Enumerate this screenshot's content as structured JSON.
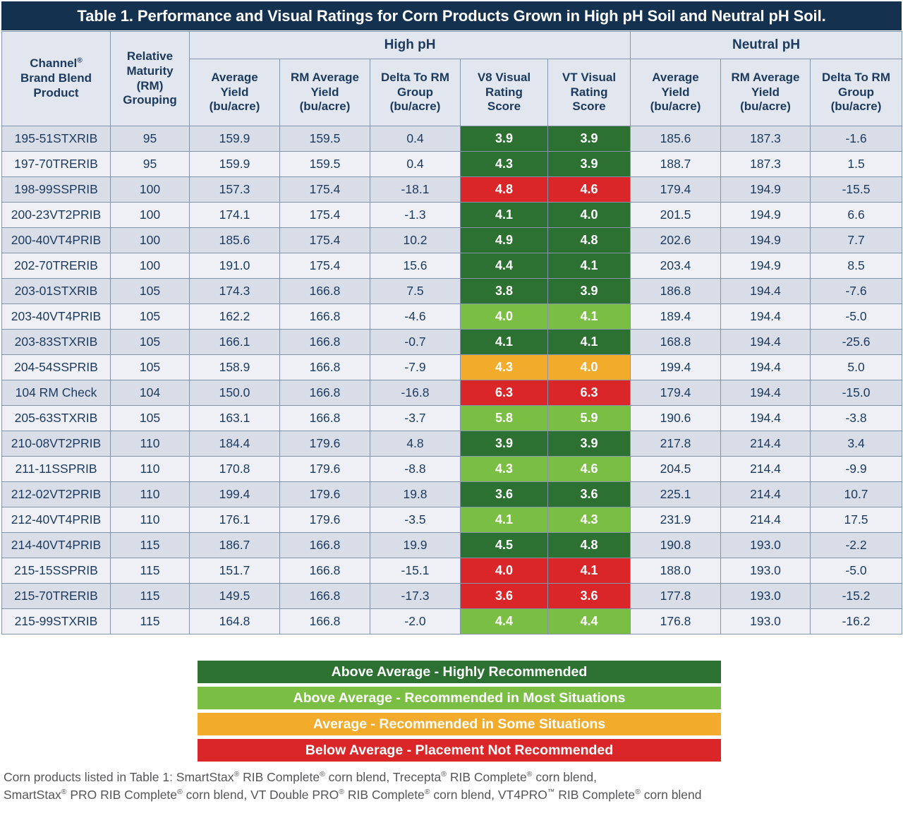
{
  "title": "Table 1. Performance and Visual Ratings for Corn Products Grown in High pH Soil and Neutral pH Soil.",
  "header": {
    "product": "Channel®\nBrand Blend\nProduct",
    "rm": "Relative\nMaturity\n(RM)\nGrouping",
    "high_ph": "High pH",
    "neutral_ph": "Neutral pH",
    "avg_yield": "Average\nYield\n(bu/acre)",
    "rm_avg_yield": "RM Average\nYield\n(bu/acre)",
    "delta": "Delta To RM\nGroup\n(bu/acre)",
    "v8": "V8 Visual\nRating\nScore",
    "vt": "VT Visual\nRating\nScore"
  },
  "colors": {
    "title_bar": "#14324f",
    "header_bg": "#e2e6ee",
    "row_dark": "#d9dde8",
    "row_light": "#eef0f6",
    "text_navy": "#1b3a5e",
    "grid_border": "#8494ab",
    "highly": "#2c7132",
    "most": "#7abf44",
    "some": "#f2ab2a",
    "not": "#da2629"
  },
  "legend": [
    {
      "level": "highly",
      "label": "Above Average - Highly Recommended"
    },
    {
      "level": "most",
      "label": "Above Average - Recommended in Most Situations"
    },
    {
      "level": "some",
      "label": "Average - Recommended in Some Situations"
    },
    {
      "level": "not",
      "label": "Below Average - Placement Not Recommended"
    }
  ],
  "footnote": {
    "line1": "Corn products listed in Table 1: SmartStax® RIB Complete® corn blend, Trecepta® RIB Complete® corn blend,",
    "line2": "SmartStax® PRO RIB Complete® corn blend, VT Double PRO® RIB Complete® corn blend, VT4PRO™ RIB Complete® corn blend"
  },
  "chart_data": {
    "type": "table",
    "title": "Table 1. Performance and Visual Ratings for Corn Products Grown in High pH Soil and Neutral pH Soil.",
    "column_groups": [
      "",
      "",
      "High pH",
      "High pH",
      "High pH",
      "High pH",
      "High pH",
      "Neutral pH",
      "Neutral pH",
      "Neutral pH"
    ],
    "columns": [
      "Channel Brand Blend Product",
      "Relative Maturity (RM) Grouping",
      "Average Yield (bu/acre)",
      "RM Average Yield (bu/acre)",
      "Delta To RM Group (bu/acre)",
      "V8 Visual Rating Score",
      "VT Visual Rating Score",
      "Average Yield (bu/acre)",
      "RM Average Yield (bu/acre)",
      "Delta To RM Group (bu/acre)"
    ],
    "rating_levels": {
      "highly": "Above Average - Highly Recommended",
      "most": "Above Average - Recommended in Most Situations",
      "some": "Average - Recommended in Some Situations",
      "not": "Below Average - Placement Not Recommended"
    },
    "rows": [
      {
        "product": "195-51STXRIB",
        "rm": "95",
        "high_avg": "159.9",
        "high_rm_avg": "159.5",
        "high_delta": "0.4",
        "v8": "3.9",
        "v8_level": "highly",
        "vt": "3.9",
        "vt_level": "highly",
        "neutral_avg": "185.6",
        "neutral_rm_avg": "187.3",
        "neutral_delta": "-1.6"
      },
      {
        "product": "197-70TRERIB",
        "rm": "95",
        "high_avg": "159.9",
        "high_rm_avg": "159.5",
        "high_delta": "0.4",
        "v8": "4.3",
        "v8_level": "highly",
        "vt": "3.9",
        "vt_level": "highly",
        "neutral_avg": "188.7",
        "neutral_rm_avg": "187.3",
        "neutral_delta": "1.5"
      },
      {
        "product": "198-99SSPRIB",
        "rm": "100",
        "high_avg": "157.3",
        "high_rm_avg": "175.4",
        "high_delta": "-18.1",
        "v8": "4.8",
        "v8_level": "not",
        "vt": "4.6",
        "vt_level": "not",
        "neutral_avg": "179.4",
        "neutral_rm_avg": "194.9",
        "neutral_delta": "-15.5"
      },
      {
        "product": "200-23VT2PRIB",
        "rm": "100",
        "high_avg": "174.1",
        "high_rm_avg": "175.4",
        "high_delta": "-1.3",
        "v8": "4.1",
        "v8_level": "highly",
        "vt": "4.0",
        "vt_level": "highly",
        "neutral_avg": "201.5",
        "neutral_rm_avg": "194.9",
        "neutral_delta": "6.6"
      },
      {
        "product": "200-40VT4PRIB",
        "rm": "100",
        "high_avg": "185.6",
        "high_rm_avg": "175.4",
        "high_delta": "10.2",
        "v8": "4.9",
        "v8_level": "highly",
        "vt": "4.8",
        "vt_level": "highly",
        "neutral_avg": "202.6",
        "neutral_rm_avg": "194.9",
        "neutral_delta": "7.7"
      },
      {
        "product": "202-70TRERIB",
        "rm": "100",
        "high_avg": "191.0",
        "high_rm_avg": "175.4",
        "high_delta": "15.6",
        "v8": "4.4",
        "v8_level": "highly",
        "vt": "4.1",
        "vt_level": "highly",
        "neutral_avg": "203.4",
        "neutral_rm_avg": "194.9",
        "neutral_delta": "8.5"
      },
      {
        "product": "203-01STXRIB",
        "rm": "105",
        "high_avg": "174.3",
        "high_rm_avg": "166.8",
        "high_delta": "7.5",
        "v8": "3.8",
        "v8_level": "highly",
        "vt": "3.9",
        "vt_level": "highly",
        "neutral_avg": "186.8",
        "neutral_rm_avg": "194.4",
        "neutral_delta": "-7.6"
      },
      {
        "product": "203-40VT4PRIB",
        "rm": "105",
        "high_avg": "162.2",
        "high_rm_avg": "166.8",
        "high_delta": "-4.6",
        "v8": "4.0",
        "v8_level": "most",
        "vt": "4.1",
        "vt_level": "most",
        "neutral_avg": "189.4",
        "neutral_rm_avg": "194.4",
        "neutral_delta": "-5.0"
      },
      {
        "product": "203-83STXRIB",
        "rm": "105",
        "high_avg": "166.1",
        "high_rm_avg": "166.8",
        "high_delta": "-0.7",
        "v8": "4.1",
        "v8_level": "highly",
        "vt": "4.1",
        "vt_level": "highly",
        "neutral_avg": "168.8",
        "neutral_rm_avg": "194.4",
        "neutral_delta": "-25.6"
      },
      {
        "product": "204-54SSPRIB",
        "rm": "105",
        "high_avg": "158.9",
        "high_rm_avg": "166.8",
        "high_delta": "-7.9",
        "v8": "4.3",
        "v8_level": "some",
        "vt": "4.0",
        "vt_level": "some",
        "neutral_avg": "199.4",
        "neutral_rm_avg": "194.4",
        "neutral_delta": "5.0"
      },
      {
        "product": "104 RM Check",
        "rm": "104",
        "high_avg": "150.0",
        "high_rm_avg": "166.8",
        "high_delta": "-16.8",
        "v8": "6.3",
        "v8_level": "not",
        "vt": "6.3",
        "vt_level": "not",
        "neutral_avg": "179.4",
        "neutral_rm_avg": "194.4",
        "neutral_delta": "-15.0"
      },
      {
        "product": "205-63STXRIB",
        "rm": "105",
        "high_avg": "163.1",
        "high_rm_avg": "166.8",
        "high_delta": "-3.7",
        "v8": "5.8",
        "v8_level": "most",
        "vt": "5.9",
        "vt_level": "most",
        "neutral_avg": "190.6",
        "neutral_rm_avg": "194.4",
        "neutral_delta": "-3.8"
      },
      {
        "product": "210-08VT2PRIB",
        "rm": "110",
        "high_avg": "184.4",
        "high_rm_avg": "179.6",
        "high_delta": "4.8",
        "v8": "3.9",
        "v8_level": "highly",
        "vt": "3.9",
        "vt_level": "highly",
        "neutral_avg": "217.8",
        "neutral_rm_avg": "214.4",
        "neutral_delta": "3.4"
      },
      {
        "product": "211-11SSPRIB",
        "rm": "110",
        "high_avg": "170.8",
        "high_rm_avg": "179.6",
        "high_delta": "-8.8",
        "v8": "4.3",
        "v8_level": "most",
        "vt": "4.6",
        "vt_level": "most",
        "neutral_avg": "204.5",
        "neutral_rm_avg": "214.4",
        "neutral_delta": "-9.9"
      },
      {
        "product": "212-02VT2PRIB",
        "rm": "110",
        "high_avg": "199.4",
        "high_rm_avg": "179.6",
        "high_delta": "19.8",
        "v8": "3.6",
        "v8_level": "highly",
        "vt": "3.6",
        "vt_level": "highly",
        "neutral_avg": "225.1",
        "neutral_rm_avg": "214.4",
        "neutral_delta": "10.7"
      },
      {
        "product": "212-40VT4PRIB",
        "rm": "110",
        "high_avg": "176.1",
        "high_rm_avg": "179.6",
        "high_delta": "-3.5",
        "v8": "4.1",
        "v8_level": "most",
        "vt": "4.3",
        "vt_level": "most",
        "neutral_avg": "231.9",
        "neutral_rm_avg": "214.4",
        "neutral_delta": "17.5"
      },
      {
        "product": "214-40VT4PRIB",
        "rm": "115",
        "high_avg": "186.7",
        "high_rm_avg": "166.8",
        "high_delta": "19.9",
        "v8": "4.5",
        "v8_level": "highly",
        "vt": "4.8",
        "vt_level": "highly",
        "neutral_avg": "190.8",
        "neutral_rm_avg": "193.0",
        "neutral_delta": "-2.2"
      },
      {
        "product": "215-15SSPRIB",
        "rm": "115",
        "high_avg": "151.7",
        "high_rm_avg": "166.8",
        "high_delta": "-15.1",
        "v8": "4.0",
        "v8_level": "not",
        "vt": "4.1",
        "vt_level": "not",
        "neutral_avg": "188.0",
        "neutral_rm_avg": "193.0",
        "neutral_delta": "-5.0"
      },
      {
        "product": "215-70TRERIB",
        "rm": "115",
        "high_avg": "149.5",
        "high_rm_avg": "166.8",
        "high_delta": "-17.3",
        "v8": "3.6",
        "v8_level": "not",
        "vt": "3.6",
        "vt_level": "not",
        "neutral_avg": "177.8",
        "neutral_rm_avg": "193.0",
        "neutral_delta": "-15.2"
      },
      {
        "product": "215-99STXRIB",
        "rm": "115",
        "high_avg": "164.8",
        "high_rm_avg": "166.8",
        "high_delta": "-2.0",
        "v8": "4.4",
        "v8_level": "most",
        "vt": "4.4",
        "vt_level": "most",
        "neutral_avg": "176.8",
        "neutral_rm_avg": "193.0",
        "neutral_delta": "-16.2"
      }
    ]
  }
}
